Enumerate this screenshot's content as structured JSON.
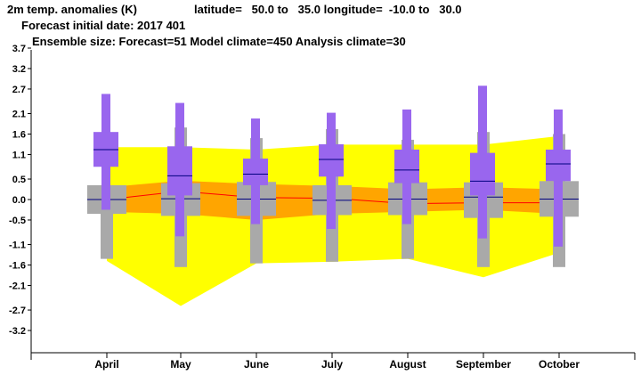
{
  "header": {
    "line1_title": "2m temp. anomalies (K)",
    "line1_lat": "latitude=   50.0 to   35.0 longitude=  -10.0 to   30.0",
    "line2": "Forecast initial date: 2017 401",
    "line3": "Ensemble size: Forecast=51 Model climate=450 Analysis climate=30"
  },
  "chart_data": {
    "type": "box",
    "categories": [
      "April",
      "May",
      "June",
      "July",
      "August",
      "September",
      "October"
    ],
    "ylim": [
      -3.7,
      3.7
    ],
    "yticks": [
      3.7,
      3.2,
      2.7,
      2.1,
      1.6,
      1.1,
      0.5,
      0.0,
      -0.5,
      -1.1,
      -1.6,
      -2.1,
      -2.7,
      -3.2
    ],
    "yticks_labels": [
      "3.7",
      "3.2",
      "2.7",
      "2.1",
      "1.6",
      "1.1",
      "0.5",
      "0.0",
      "-0.5",
      "-1.1",
      "-1.6",
      "-2.1",
      "-2.7",
      "-3.2"
    ],
    "colors": {
      "yellow": "#ffff00",
      "orange": "#ffa500",
      "median_line": "#ff0000",
      "model_climate_box": "#a9a9a9",
      "forecast_box": "#9966ee",
      "forecast_median": "#000080",
      "climate_median": "#000080"
    },
    "yellow_band": {
      "upper": [
        1.28,
        1.28,
        1.22,
        1.34,
        1.34,
        1.34,
        1.55
      ],
      "lower": [
        -1.5,
        -2.6,
        -1.56,
        -1.52,
        -1.45,
        -1.9,
        -1.3
      ]
    },
    "orange_band": {
      "upper": [
        0.3,
        0.46,
        0.38,
        0.33,
        0.25,
        0.3,
        0.25
      ],
      "lower": [
        -0.3,
        -0.35,
        -0.5,
        -0.35,
        -0.3,
        -0.25,
        -0.35
      ]
    },
    "model_climate": [
      {
        "min": -1.45,
        "p10": -0.35,
        "median": 0.0,
        "p90": 0.35,
        "max": 0.35
      },
      {
        "min": -1.65,
        "p10": -0.4,
        "median": 0.02,
        "p90": 0.4,
        "max": 1.76
      },
      {
        "min": -1.56,
        "p10": -0.4,
        "median": 0.01,
        "p90": 0.43,
        "max": 1.5
      },
      {
        "min": -1.52,
        "p10": -0.38,
        "median": -0.02,
        "p90": 0.35,
        "max": 1.72
      },
      {
        "min": -1.45,
        "p10": -0.38,
        "median": 0.01,
        "p90": 0.42,
        "max": 1.46
      },
      {
        "min": -1.65,
        "p10": -0.45,
        "median": 0.06,
        "p90": 0.42,
        "max": 1.65
      },
      {
        "min": -1.65,
        "p10": -0.42,
        "median": 0.01,
        "p90": 0.45,
        "max": 1.6
      }
    ],
    "forecast": [
      {
        "min": -0.25,
        "p25": 0.8,
        "median": 1.22,
        "p75": 1.65,
        "max": 2.58
      },
      {
        "min": -0.9,
        "p25": 0.1,
        "median": 0.58,
        "p75": 1.3,
        "max": 2.36
      },
      {
        "min": -0.6,
        "p25": 0.35,
        "median": 0.62,
        "p75": 1.0,
        "max": 1.98
      },
      {
        "min": -0.72,
        "p25": 0.56,
        "median": 0.98,
        "p75": 1.35,
        "max": 2.12
      },
      {
        "min": -0.6,
        "p25": 0.4,
        "median": 0.72,
        "p75": 1.22,
        "max": 2.2
      },
      {
        "min": -0.95,
        "p25": 0.1,
        "median": 0.45,
        "p75": 1.14,
        "max": 2.78
      },
      {
        "min": -1.15,
        "p25": 0.45,
        "median": 0.87,
        "p75": 1.22,
        "max": 2.2
      }
    ],
    "median_line": [
      0.0,
      0.2,
      0.05,
      0.03,
      -0.1,
      -0.08,
      -0.08
    ]
  }
}
